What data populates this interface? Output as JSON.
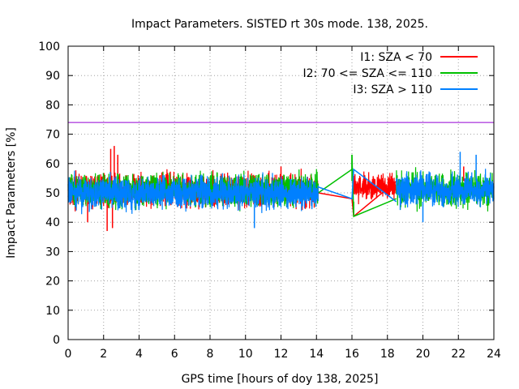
{
  "chart_data": {
    "type": "line",
    "title": "Impact Parameters. SISTED rt 30s mode. 138, 2025.",
    "xlabel": "GPS time [hours of doy 138, 2025]",
    "ylabel": "Impact Parameters [%]",
    "xlim": [
      0,
      24
    ],
    "ylim": [
      0,
      100
    ],
    "xticks": [
      0,
      2,
      4,
      6,
      8,
      10,
      12,
      14,
      16,
      18,
      20,
      22,
      24
    ],
    "yticks": [
      0,
      10,
      20,
      30,
      40,
      50,
      60,
      70,
      80,
      90,
      100
    ],
    "grid": true,
    "legend_position": "top-right",
    "threshold": {
      "y": 74,
      "color": "#9400d3"
    },
    "series": [
      {
        "name": "I1: SZA < 70",
        "color": "#ff0000",
        "segments": [
          {
            "x_range": [
              0,
              14.1
            ],
            "mean": 51,
            "spread": 5
          },
          {
            "x_range": [
              16.1,
              18.5
            ],
            "mean": 52,
            "spread": 4
          }
        ],
        "bridge_points": [
          [
            14.1,
            50
          ],
          [
            16.0,
            48
          ],
          [
            16.1,
            42
          ],
          [
            18.5,
            54
          ]
        ],
        "spikes": [
          [
            2.4,
            65
          ],
          [
            2.6,
            66
          ],
          [
            2.8,
            63
          ],
          [
            2.2,
            37
          ],
          [
            2.5,
            38
          ],
          [
            1.1,
            40
          ],
          [
            12.0,
            59
          ],
          [
            22.3,
            59
          ]
        ]
      },
      {
        "name": "I2: 70 <= SZA <= 110",
        "color": "#00c000",
        "segments": [
          {
            "x_range": [
              0,
              14.1
            ],
            "mean": 51,
            "spread": 5
          },
          {
            "x_range": [
              18.5,
              24
            ],
            "mean": 51,
            "spread": 5
          }
        ],
        "bridge_points": [
          [
            14.1,
            50
          ],
          [
            16.0,
            58
          ],
          [
            16.0,
            63
          ],
          [
            16.1,
            42
          ],
          [
            18.5,
            48
          ]
        ],
        "spikes": [
          [
            16.0,
            63
          ],
          [
            16.1,
            42
          ]
        ]
      },
      {
        "name": "I3: SZA > 110",
        "color": "#0080ff",
        "segments": [
          {
            "x_range": [
              0,
              14.1
            ],
            "mean": 50,
            "spread": 5
          },
          {
            "x_range": [
              18.5,
              24
            ],
            "mean": 51,
            "spread": 5
          }
        ],
        "bridge_points": [
          [
            14.1,
            52
          ],
          [
            16.0,
            48
          ],
          [
            16.1,
            58
          ],
          [
            18.5,
            47
          ]
        ],
        "spikes": [
          [
            10.5,
            38
          ],
          [
            20.0,
            40
          ],
          [
            22.1,
            64
          ],
          [
            23.0,
            63
          ],
          [
            20.4,
            57
          ]
        ]
      }
    ]
  }
}
